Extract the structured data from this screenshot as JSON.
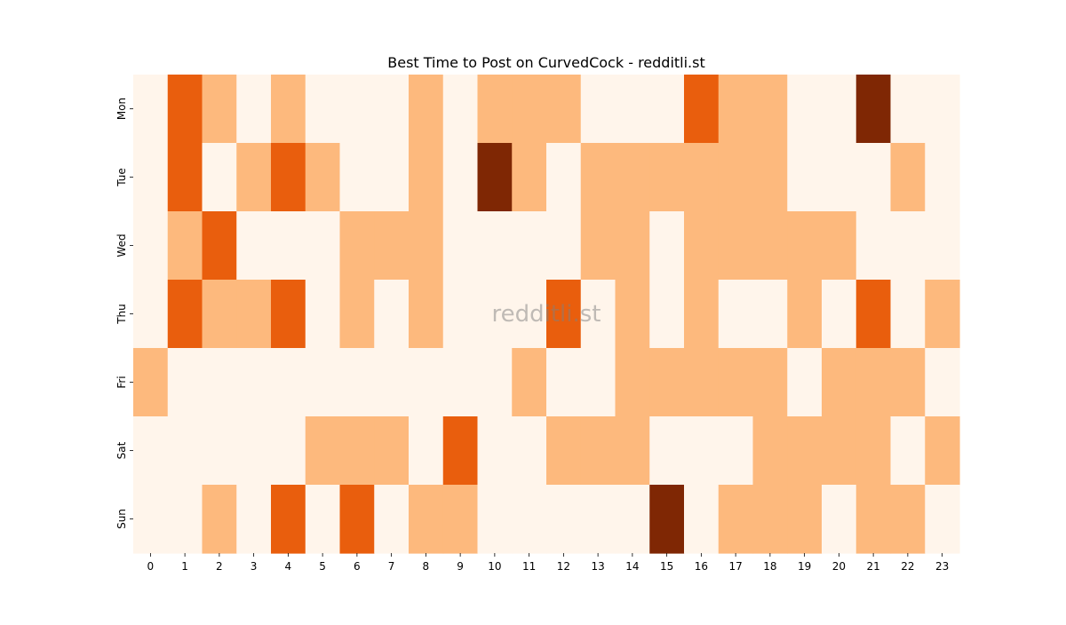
{
  "chart_data": {
    "type": "heatmap",
    "title": "Best Time to Post on CurvedCock - redditli.st",
    "xlabel": "",
    "ylabel": "",
    "x_categories": [
      "0",
      "1",
      "2",
      "3",
      "4",
      "5",
      "6",
      "7",
      "8",
      "9",
      "10",
      "11",
      "12",
      "13",
      "14",
      "15",
      "16",
      "17",
      "18",
      "19",
      "20",
      "21",
      "22",
      "23"
    ],
    "y_categories": [
      "Mon",
      "Tue",
      "Wed",
      "Thu",
      "Fri",
      "Sat",
      "Sun"
    ],
    "values": [
      [
        0,
        2,
        1,
        0,
        1,
        0,
        0,
        0,
        1,
        0,
        1,
        1,
        1,
        0,
        0,
        0,
        2,
        1,
        1,
        0,
        0,
        3,
        0,
        0
      ],
      [
        0,
        2,
        0,
        1,
        2,
        1,
        0,
        0,
        1,
        0,
        3,
        1,
        0,
        1,
        1,
        1,
        1,
        1,
        1,
        0,
        0,
        0,
        1,
        0
      ],
      [
        0,
        1,
        2,
        0,
        0,
        0,
        1,
        1,
        1,
        0,
        0,
        0,
        0,
        1,
        1,
        0,
        1,
        1,
        1,
        1,
        1,
        0,
        0,
        0
      ],
      [
        0,
        2,
        1,
        1,
        2,
        0,
        1,
        0,
        1,
        0,
        0,
        0,
        2,
        0,
        1,
        0,
        1,
        0,
        0,
        1,
        0,
        2,
        0,
        1
      ],
      [
        1,
        0,
        0,
        0,
        0,
        0,
        0,
        0,
        0,
        0,
        0,
        1,
        0,
        0,
        1,
        1,
        1,
        1,
        1,
        0,
        1,
        1,
        1,
        0
      ],
      [
        0,
        0,
        0,
        0,
        0,
        1,
        1,
        1,
        0,
        2,
        0,
        0,
        1,
        1,
        1,
        0,
        0,
        0,
        1,
        1,
        1,
        1,
        0,
        1
      ],
      [
        0,
        0,
        1,
        0,
        2,
        0,
        2,
        0,
        1,
        1,
        0,
        0,
        0,
        0,
        0,
        3,
        0,
        1,
        1,
        1,
        0,
        1,
        1,
        0
      ]
    ],
    "colorscale": [
      "#fff5eb",
      "#fdb97d",
      "#e95e0d",
      "#7f2704"
    ],
    "colorbar": false,
    "grid": false,
    "watermark": "redditli.st"
  }
}
